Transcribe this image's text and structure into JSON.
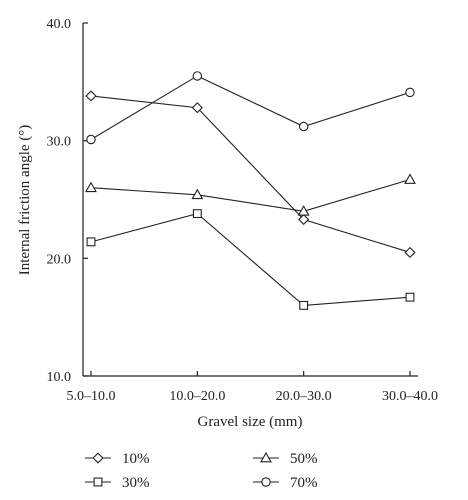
{
  "chart_data": {
    "type": "line",
    "xlabel": "Gravel size (mm)",
    "ylabel": "Internal friction angle (°)",
    "categories": [
      "5.0–10.0",
      "10.0–20.0",
      "20.0–30.0",
      "30.0–40.0"
    ],
    "ylim": [
      10.0,
      40.0
    ],
    "yticks": [
      "10.0",
      "20.0",
      "30.0",
      "40.0"
    ],
    "grid": false,
    "legend_position": "bottom",
    "series": [
      {
        "name": "10%",
        "marker": "diamond",
        "values": [
          33.8,
          32.8,
          23.3,
          20.5
        ]
      },
      {
        "name": "30%",
        "marker": "square",
        "values": [
          21.4,
          23.8,
          16.0,
          16.7
        ]
      },
      {
        "name": "50%",
        "marker": "triangle",
        "values": [
          26.0,
          25.4,
          24.0,
          26.7
        ]
      },
      {
        "name": "70%",
        "marker": "circle",
        "values": [
          30.1,
          35.5,
          31.2,
          34.1
        ]
      }
    ],
    "colors": {
      "line": "#222222",
      "marker_fill": "#ffffff"
    }
  }
}
